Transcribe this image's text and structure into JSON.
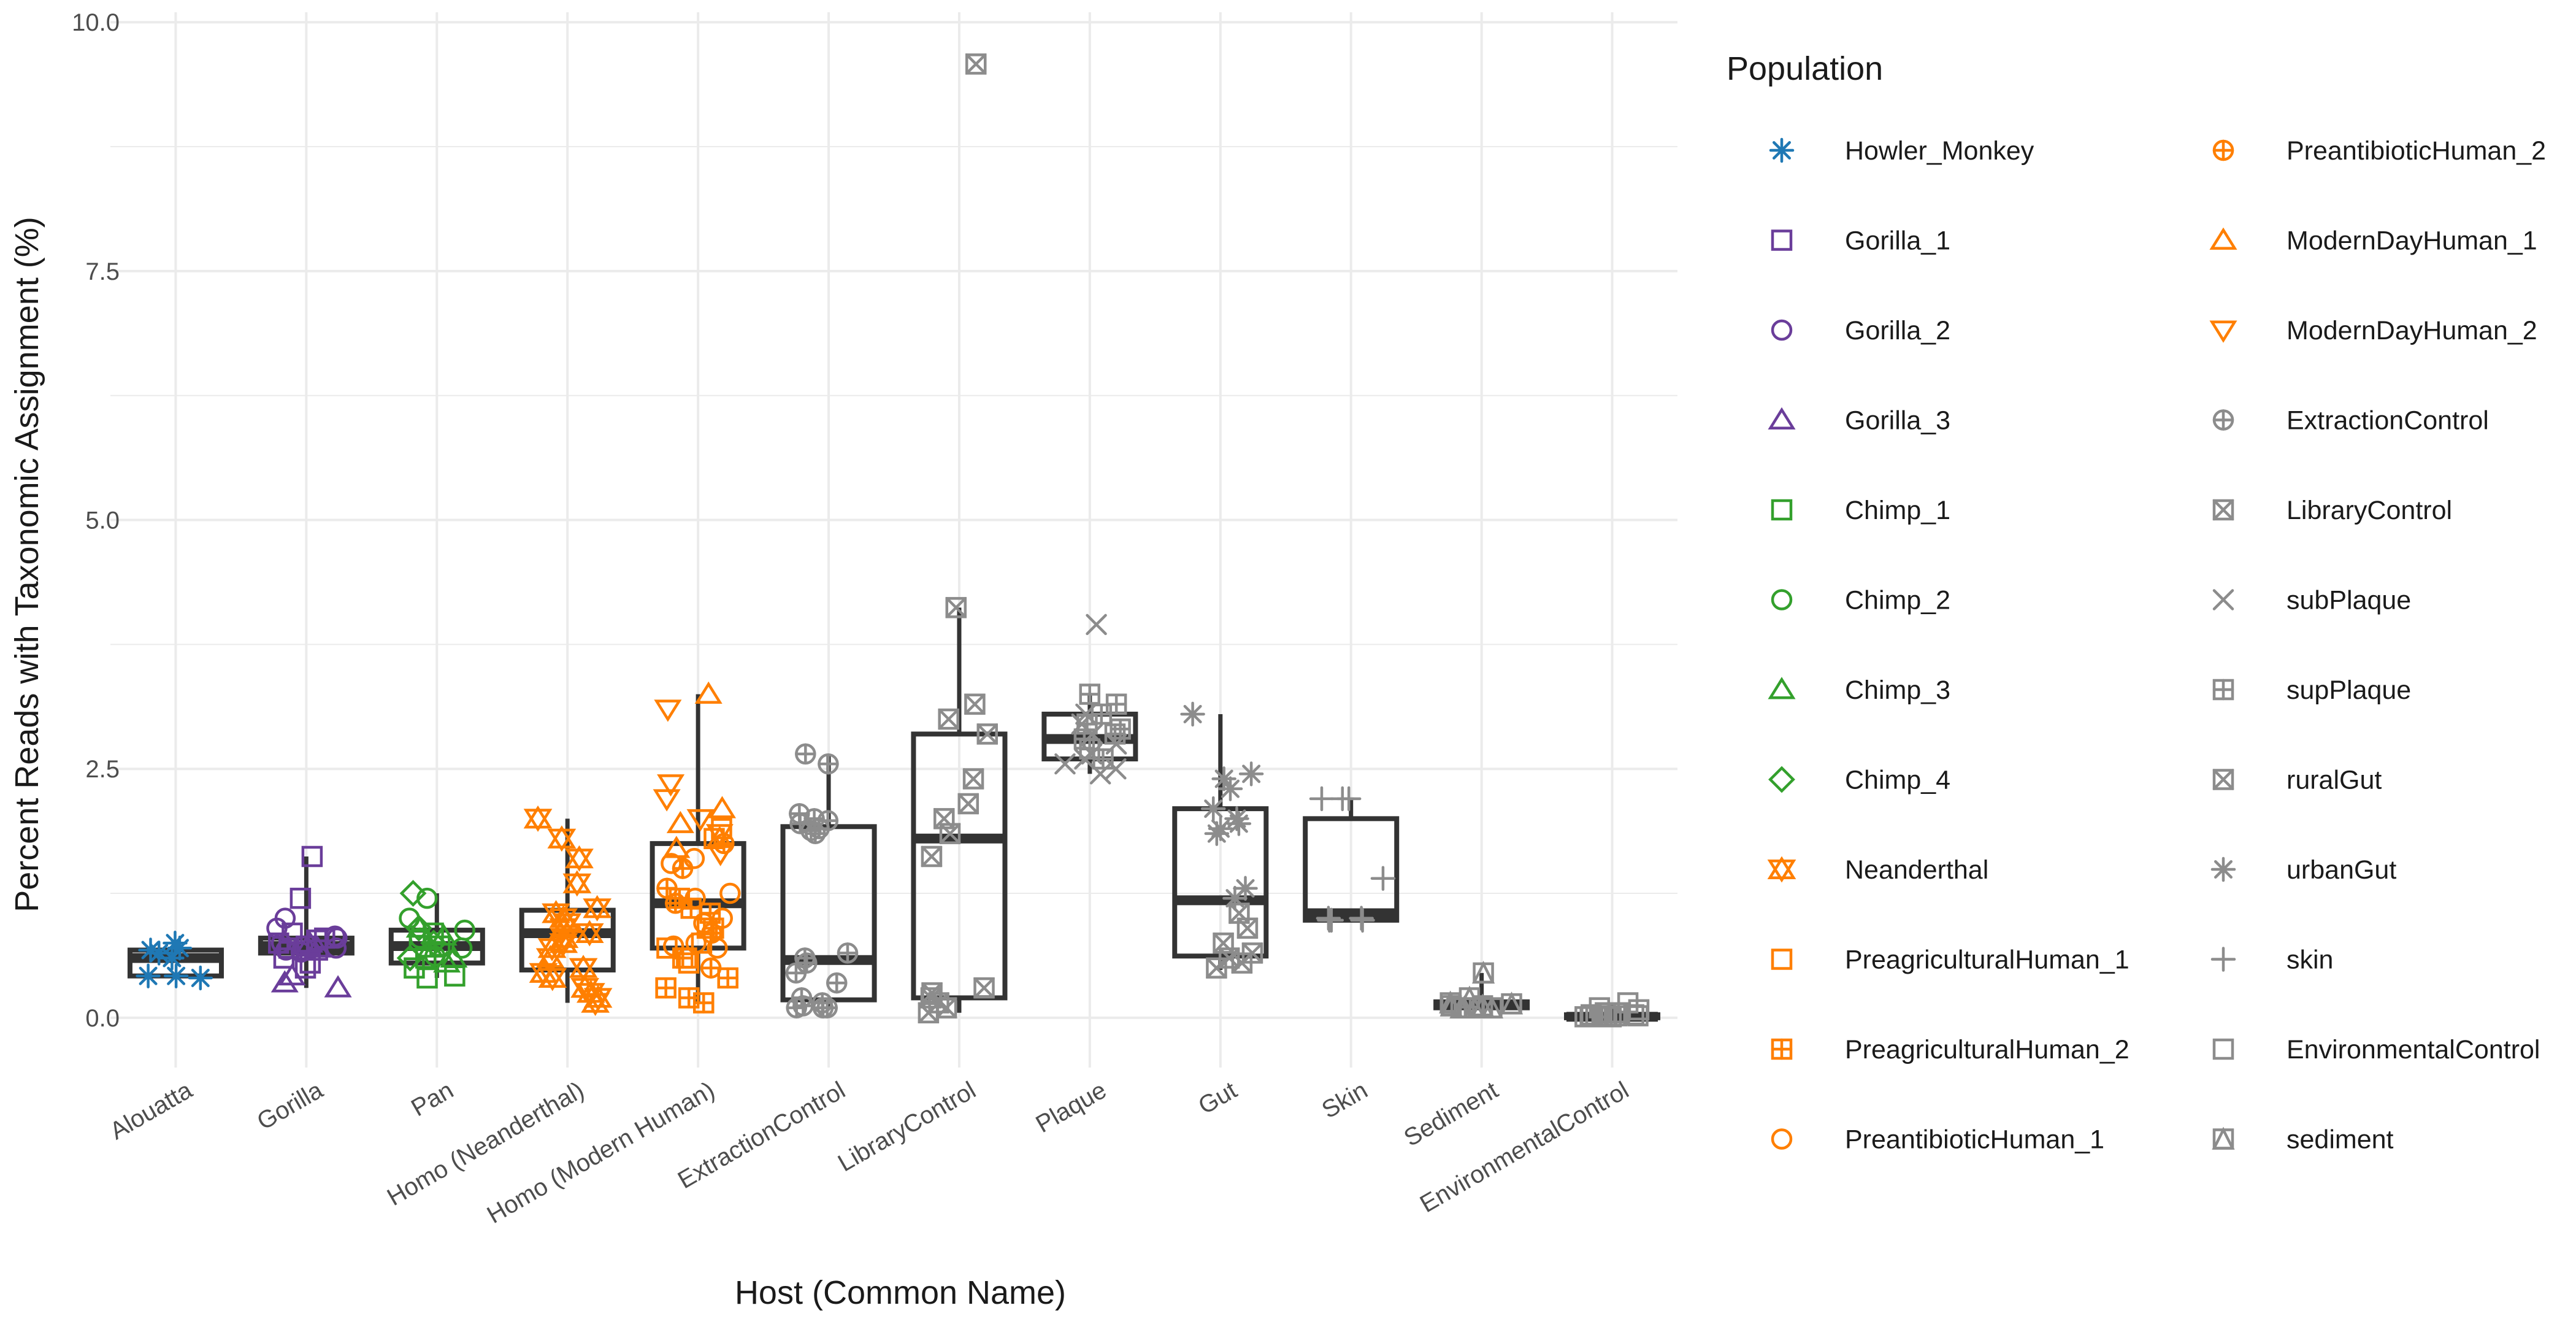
{
  "chart_data": {
    "type": "box",
    "xlabel": "Host (Common Name)",
    "ylabel": "Percent Reads with Taxonomic Assignment (%)",
    "ylim": [
      -0.5,
      10.1
    ],
    "yticks": [
      0.0,
      2.5,
      5.0,
      7.5,
      10.0
    ],
    "ytick_labels": [
      "0.0",
      "2.5",
      "5.0",
      "7.5",
      "10.0"
    ],
    "grid": true,
    "legend_position": "right",
    "legend_title": "Population",
    "categories": [
      "Alouatta",
      "Gorilla",
      "Pan",
      "Homo (Neanderthal)",
      "Homo (Modern Human)",
      "ExtractionControl",
      "LibraryControl",
      "Plaque",
      "Gut",
      "Skin",
      "Sediment",
      "EnvironmentalControl"
    ],
    "boxes": [
      {
        "category": "Alouatta",
        "min": 0.42,
        "q1": 0.42,
        "median": 0.6,
        "q3": 0.68,
        "max": 0.75
      },
      {
        "category": "Gorilla",
        "min": 0.3,
        "q1": 0.65,
        "median": 0.72,
        "q3": 0.8,
        "max": 1.62
      },
      {
        "category": "Pan",
        "min": 0.4,
        "q1": 0.55,
        "median": 0.72,
        "q3": 0.88,
        "max": 1.25
      },
      {
        "category": "Homo (Neanderthal)",
        "min": 0.15,
        "q1": 0.48,
        "median": 0.85,
        "q3": 1.08,
        "max": 2.0
      },
      {
        "category": "Homo (Modern Human)",
        "min": 0.15,
        "q1": 0.7,
        "median": 1.15,
        "q3": 1.75,
        "max": 3.25
      },
      {
        "category": "ExtractionControl",
        "min": 0.1,
        "q1": 0.18,
        "median": 0.58,
        "q3": 1.92,
        "max": 2.65
      },
      {
        "category": "LibraryControl",
        "min": 0.05,
        "q1": 0.2,
        "median": 1.8,
        "q3": 2.85,
        "max": 4.12,
        "outliers": [
          9.58
        ]
      },
      {
        "category": "Plaque",
        "min": 2.45,
        "q1": 2.6,
        "median": 2.8,
        "q3": 3.05,
        "max": 3.25,
        "outliers": [
          3.95
        ]
      },
      {
        "category": "Gut",
        "min": 0.48,
        "q1": 0.62,
        "median": 1.18,
        "q3": 2.1,
        "max": 3.05
      },
      {
        "category": "Skin",
        "min": 0.98,
        "q1": 0.98,
        "median": 1.05,
        "q3": 2.0,
        "max": 2.2
      },
      {
        "category": "Sediment",
        "min": 0.08,
        "q1": 0.1,
        "median": 0.13,
        "q3": 0.16,
        "max": 0.45
      },
      {
        "category": "EnvironmentalControl",
        "min": 0.0,
        "q1": 0.0,
        "median": 0.01,
        "q3": 0.03,
        "max": 0.15
      }
    ],
    "points": [
      {
        "category": "Alouatta",
        "population": "Howler_Monkey",
        "values": [
          0.75,
          0.7,
          0.68,
          0.65,
          0.6,
          0.42,
          0.42,
          0.4
        ]
      },
      {
        "category": "Gorilla",
        "population": "Gorilla_1",
        "values": [
          1.62,
          1.2,
          0.85,
          0.8,
          0.78,
          0.75,
          0.72,
          0.7,
          0.68,
          0.6,
          0.55,
          0.5
        ]
      },
      {
        "category": "Gorilla",
        "population": "Gorilla_2",
        "values": [
          1.0,
          0.9,
          0.82,
          0.8,
          0.75,
          0.72,
          0.7,
          0.68,
          0.66
        ]
      },
      {
        "category": "Gorilla",
        "population": "Gorilla_3",
        "values": [
          0.75,
          0.7,
          0.42,
          0.35,
          0.3
        ]
      },
      {
        "category": "Pan",
        "population": "Chimp_1",
        "values": [
          0.85,
          0.78,
          0.72,
          0.6,
          0.5,
          0.42,
          0.4
        ]
      },
      {
        "category": "Pan",
        "population": "Chimp_2",
        "values": [
          1.2,
          1.0,
          0.88,
          0.8,
          0.7,
          0.62
        ]
      },
      {
        "category": "Pan",
        "population": "Chimp_3",
        "values": [
          0.9,
          0.82,
          0.7,
          0.6,
          0.55
        ]
      },
      {
        "category": "Pan",
        "population": "Chimp_4",
        "values": [
          1.25,
          0.9,
          0.75,
          0.6
        ]
      },
      {
        "category": "Homo (Neanderthal)",
        "population": "Neanderthal",
        "values": [
          2.0,
          1.8,
          1.6,
          1.35,
          1.1,
          1.05,
          1.0,
          0.95,
          0.9,
          0.85,
          0.8,
          0.75,
          0.7,
          0.6,
          0.5,
          0.45,
          0.4,
          0.3,
          0.25,
          0.2,
          0.15
        ]
      },
      {
        "category": "Homo (Modern Human)",
        "population": "PreagriculturalHuman_1",
        "values": [
          1.9,
          1.8,
          0.9,
          0.75,
          0.7,
          0.6,
          0.55
        ]
      },
      {
        "category": "Homo (Modern Human)",
        "population": "PreagriculturalHuman_2",
        "values": [
          1.2,
          1.1,
          1.05,
          0.9,
          0.6,
          0.4,
          0.3,
          0.2,
          0.15
        ]
      },
      {
        "category": "Homo (Modern Human)",
        "population": "PreantibioticHuman_1",
        "values": [
          1.6,
          1.55,
          1.25,
          1.2,
          1.0,
          0.95,
          0.75,
          0.72,
          0.7
        ]
      },
      {
        "category": "Homo (Modern Human)",
        "population": "PreantibioticHuman_2",
        "values": [
          1.75,
          1.5,
          1.3,
          1.15,
          0.85,
          0.5
        ]
      },
      {
        "category": "Homo (Modern Human)",
        "population": "ModernDayHuman_1",
        "values": [
          3.25,
          2.1,
          1.95,
          1.8,
          1.7
        ]
      },
      {
        "category": "Homo (Modern Human)",
        "population": "ModernDayHuman_2",
        "values": [
          3.1,
          2.35,
          2.2,
          2.0,
          1.85,
          1.65
        ]
      },
      {
        "category": "ExtractionControl",
        "population": "ExtractionControl",
        "values": [
          2.65,
          2.55,
          2.05,
          2.0,
          1.98,
          1.95,
          1.9,
          1.88,
          1.85,
          0.65,
          0.6,
          0.55,
          0.45,
          0.35,
          0.2,
          0.15,
          0.12,
          0.1,
          0.1,
          0.1
        ]
      },
      {
        "category": "LibraryControl",
        "population": "LibraryControl",
        "values": [
          9.58,
          4.12,
          3.15,
          3.0,
          2.85,
          2.4,
          2.15,
          2.0,
          1.85,
          1.62,
          0.3,
          0.25,
          0.2,
          0.15,
          0.1,
          0.05
        ]
      },
      {
        "category": "Plaque",
        "population": "subPlaque",
        "values": [
          3.95,
          3.05,
          2.95,
          2.85,
          2.75,
          2.65,
          2.6,
          2.55,
          2.5,
          2.45
        ]
      },
      {
        "category": "Plaque",
        "population": "supPlaque",
        "values": [
          3.25,
          3.15,
          3.05,
          2.95,
          2.9,
          2.85,
          2.8,
          2.7,
          2.6
        ]
      },
      {
        "category": "Gut",
        "population": "ruralGut",
        "values": [
          1.05,
          0.9,
          0.75,
          0.65,
          0.6,
          0.55,
          0.5
        ]
      },
      {
        "category": "Gut",
        "population": "urbanGut",
        "values": [
          3.05,
          2.45,
          2.4,
          2.3,
          2.1,
          2.0,
          1.95,
          1.9,
          1.85,
          1.3,
          1.2
        ]
      },
      {
        "category": "Skin",
        "population": "skin",
        "values": [
          2.2,
          2.2,
          2.2,
          1.4,
          1.0,
          1.0,
          0.98,
          0.98,
          0.98
        ]
      },
      {
        "category": "Sediment",
        "population": "sediment",
        "values": [
          0.45,
          0.2,
          0.15,
          0.14,
          0.12,
          0.12,
          0.1,
          0.1,
          0.1,
          0.1
        ]
      },
      {
        "category": "EnvironmentalControl",
        "population": "EnvironmentalControl",
        "values": [
          0.15,
          0.1,
          0.08,
          0.05,
          0.05,
          0.03,
          0.03,
          0.02,
          0.02,
          0.02,
          0.02,
          0.01,
          0.01,
          0.01,
          0.01,
          0.01
        ]
      }
    ],
    "legend": [
      {
        "label": "Howler_Monkey",
        "shape": "asterisk",
        "color": "#1f78b4"
      },
      {
        "label": "Gorilla_1",
        "shape": "square",
        "color": "#6a3d9a"
      },
      {
        "label": "Gorilla_2",
        "shape": "circle",
        "color": "#6a3d9a"
      },
      {
        "label": "Gorilla_3",
        "shape": "triangle-up",
        "color": "#6a3d9a"
      },
      {
        "label": "Chimp_1",
        "shape": "square",
        "color": "#33a02c"
      },
      {
        "label": "Chimp_2",
        "shape": "circle",
        "color": "#33a02c"
      },
      {
        "label": "Chimp_3",
        "shape": "triangle-up",
        "color": "#33a02c"
      },
      {
        "label": "Chimp_4",
        "shape": "diamond",
        "color": "#33a02c"
      },
      {
        "label": "Neanderthal",
        "shape": "star-of-david",
        "color": "#ff7f00"
      },
      {
        "label": "PreagriculturalHuman_1",
        "shape": "square",
        "color": "#ff7f00"
      },
      {
        "label": "PreagriculturalHuman_2",
        "shape": "square-plus",
        "color": "#ff7f00"
      },
      {
        "label": "PreantibioticHuman_1",
        "shape": "circle",
        "color": "#ff7f00"
      },
      {
        "label": "PreantibioticHuman_2",
        "shape": "circle-plus",
        "color": "#ff7f00"
      },
      {
        "label": "ModernDayHuman_1",
        "shape": "triangle-up",
        "color": "#ff7f00"
      },
      {
        "label": "ModernDayHuman_2",
        "shape": "triangle-down",
        "color": "#ff7f00"
      },
      {
        "label": "ExtractionControl",
        "shape": "circle-plus",
        "color": "#8c8c8c"
      },
      {
        "label": "LibraryControl",
        "shape": "square-x",
        "color": "#8c8c8c"
      },
      {
        "label": "subPlaque",
        "shape": "cross-x",
        "color": "#8c8c8c"
      },
      {
        "label": "supPlaque",
        "shape": "square-plus",
        "color": "#8c8c8c"
      },
      {
        "label": "ruralGut",
        "shape": "square-x",
        "color": "#8c8c8c"
      },
      {
        "label": "urbanGut",
        "shape": "asterisk",
        "color": "#8c8c8c"
      },
      {
        "label": "skin",
        "shape": "plus",
        "color": "#8c8c8c"
      },
      {
        "label": "EnvironmentalControl",
        "shape": "square",
        "color": "#8c8c8c"
      },
      {
        "label": "sediment",
        "shape": "square-triangle",
        "color": "#8c8c8c"
      }
    ],
    "colors": {
      "grid": "#ebebeb",
      "box": "#333333",
      "text": "#4d4d4d"
    }
  }
}
